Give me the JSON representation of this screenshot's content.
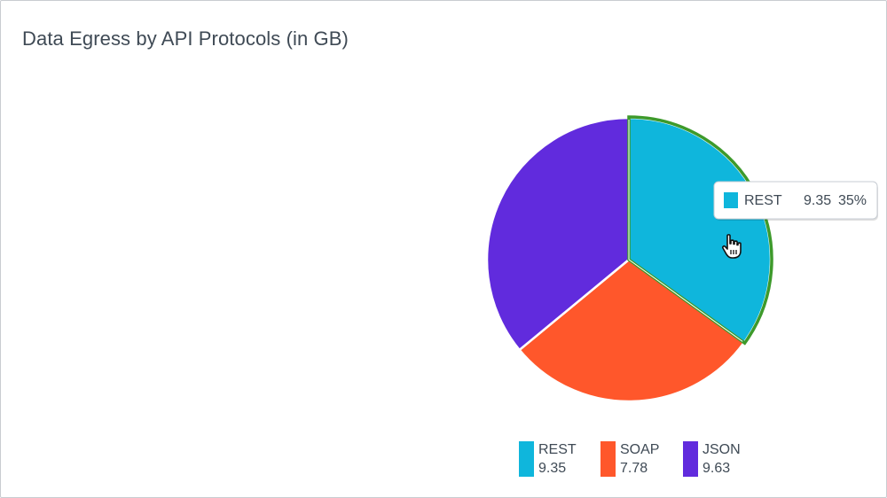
{
  "chart_data": {
    "type": "pie",
    "title": "Data Egress by API Protocols (in GB)",
    "categories": [
      "REST",
      "SOAP",
      "JSON"
    ],
    "values": [
      9.35,
      7.78,
      9.63
    ],
    "value_labels": [
      "9.35",
      "7.78",
      "9.63"
    ],
    "colors": [
      "#0fb6dc",
      "#ff572b",
      "#612bdd"
    ],
    "highlight_color": "#3d9a2b",
    "legend_position": "bottom",
    "tooltip": {
      "category": "REST",
      "value": "9.35",
      "percent": "35%"
    }
  }
}
